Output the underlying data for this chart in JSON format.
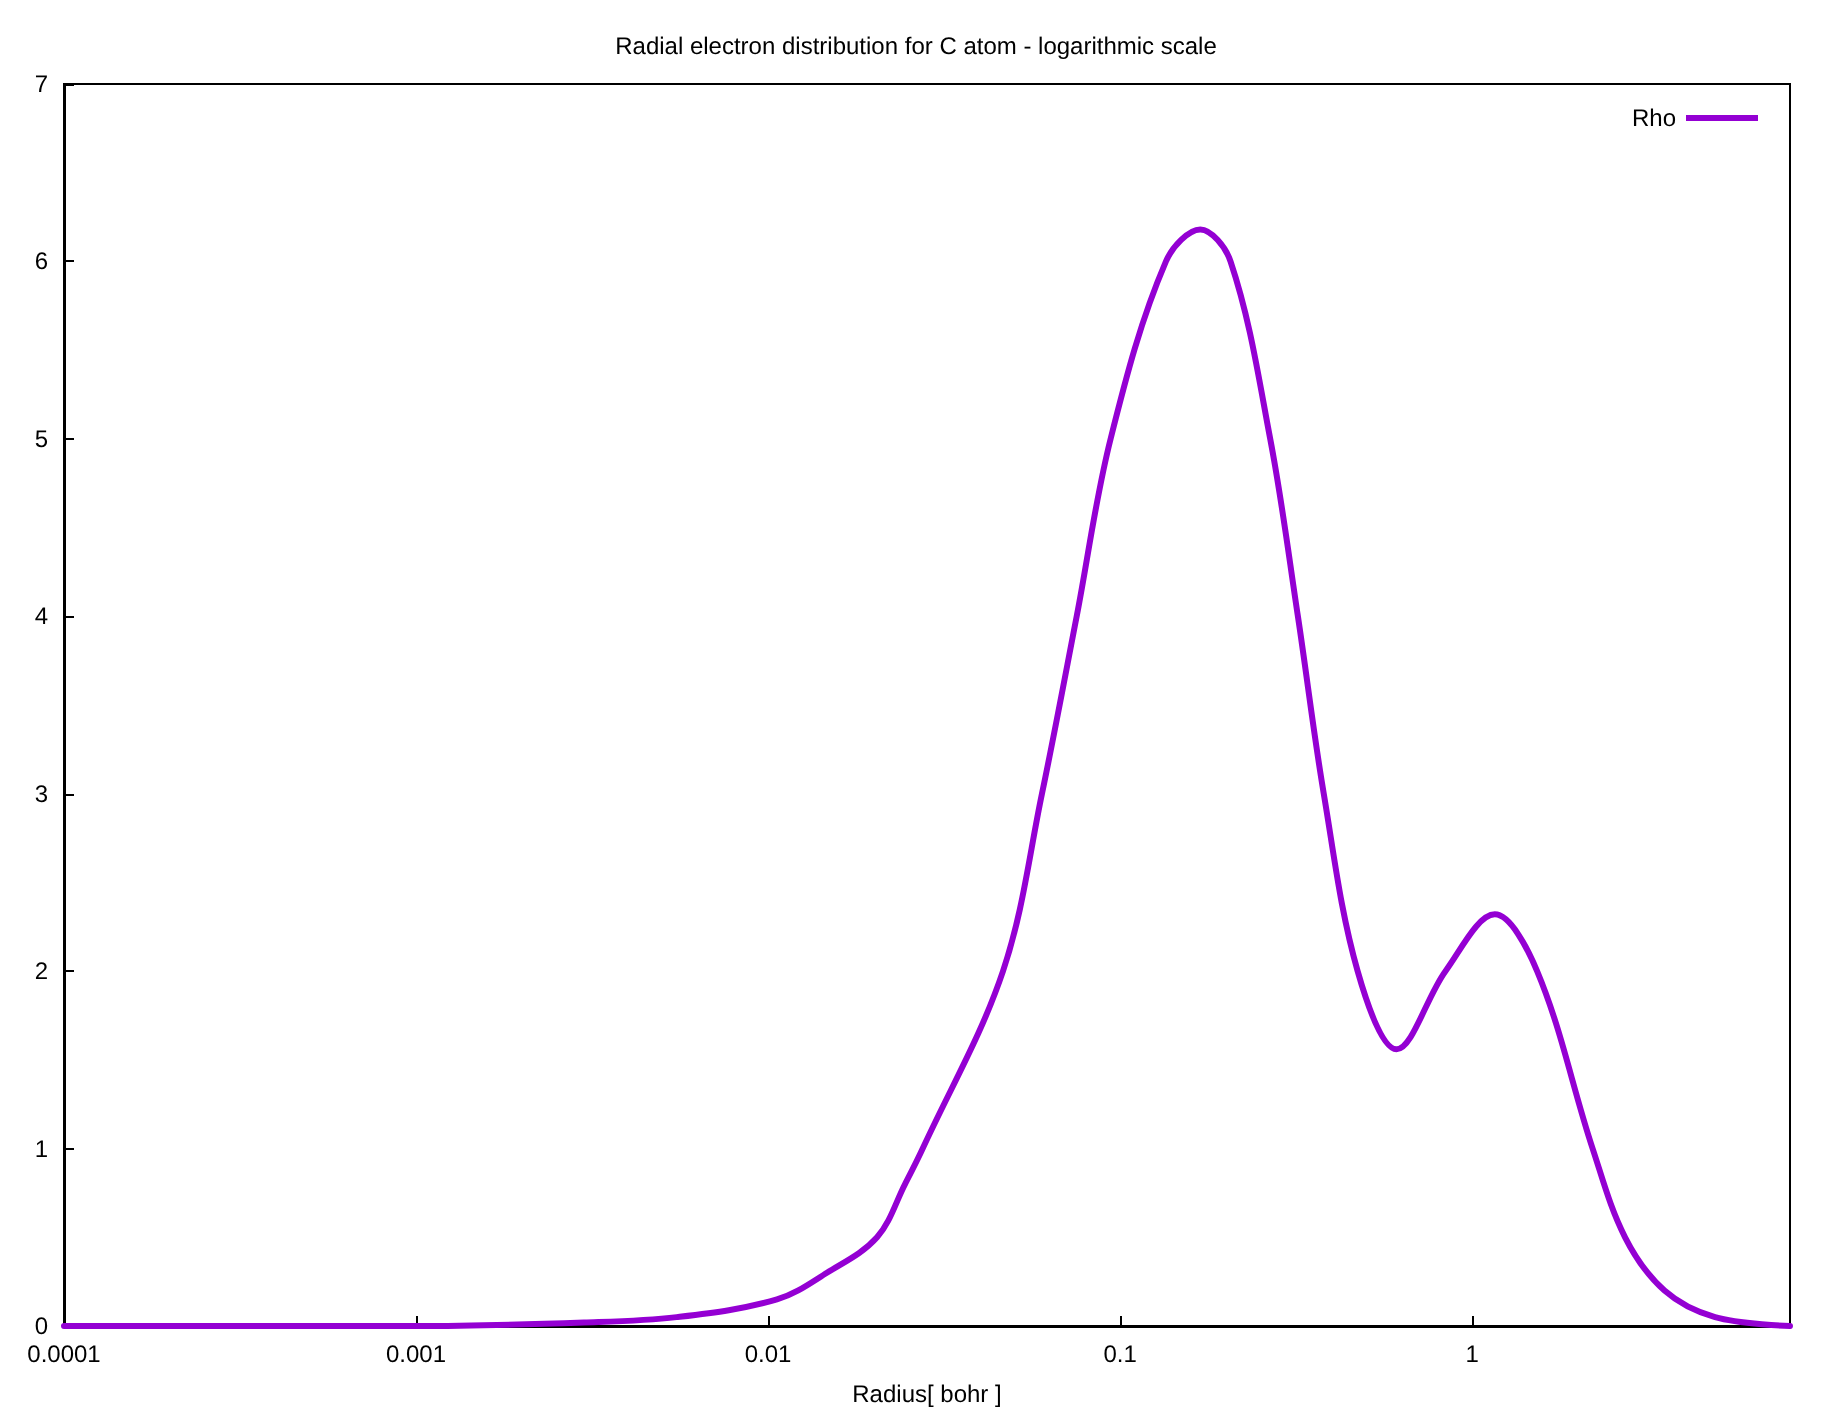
{
  "chart_data": {
    "type": "line",
    "title": "Radial electron distribution for C atom - logarithmic scale",
    "xlabel": "Radius[ bohr ]",
    "series": [
      {
        "name": "Rho",
        "color": "#9400d3",
        "x": [
          0.0001,
          0.001,
          0.003,
          0.0055,
          0.0106,
          0.0147,
          0.0204,
          0.0245,
          0.0275,
          0.0465,
          0.06,
          0.0753,
          0.094,
          0.135,
          0.169,
          0.206,
          0.267,
          0.32,
          0.379,
          0.473,
          0.61,
          0.84,
          1.16,
          1.53,
          2.2,
          2.72,
          3.52,
          4.9,
          8
        ],
        "values": [
          0,
          0,
          0.02,
          0.05,
          0.15,
          0.3,
          0.5,
          0.8,
          1,
          2,
          3,
          4,
          5,
          6,
          6.18,
          6,
          5,
          4,
          3,
          2,
          1.56,
          2,
          2.32,
          2,
          1,
          0.5,
          0.2,
          0.05,
          0
        ]
      }
    ],
    "log": "x",
    "xlim": [
      0.0001,
      8
    ],
    "xticks": [
      0.0001,
      0.001,
      0.01,
      0.1,
      1
    ],
    "ylim": [
      0,
      7
    ],
    "yticks": [
      0,
      1,
      2,
      3,
      4,
      5,
      6,
      7
    ],
    "grid": false,
    "legend": "top right",
    "marker": "none",
    "line_style": "solid"
  }
}
